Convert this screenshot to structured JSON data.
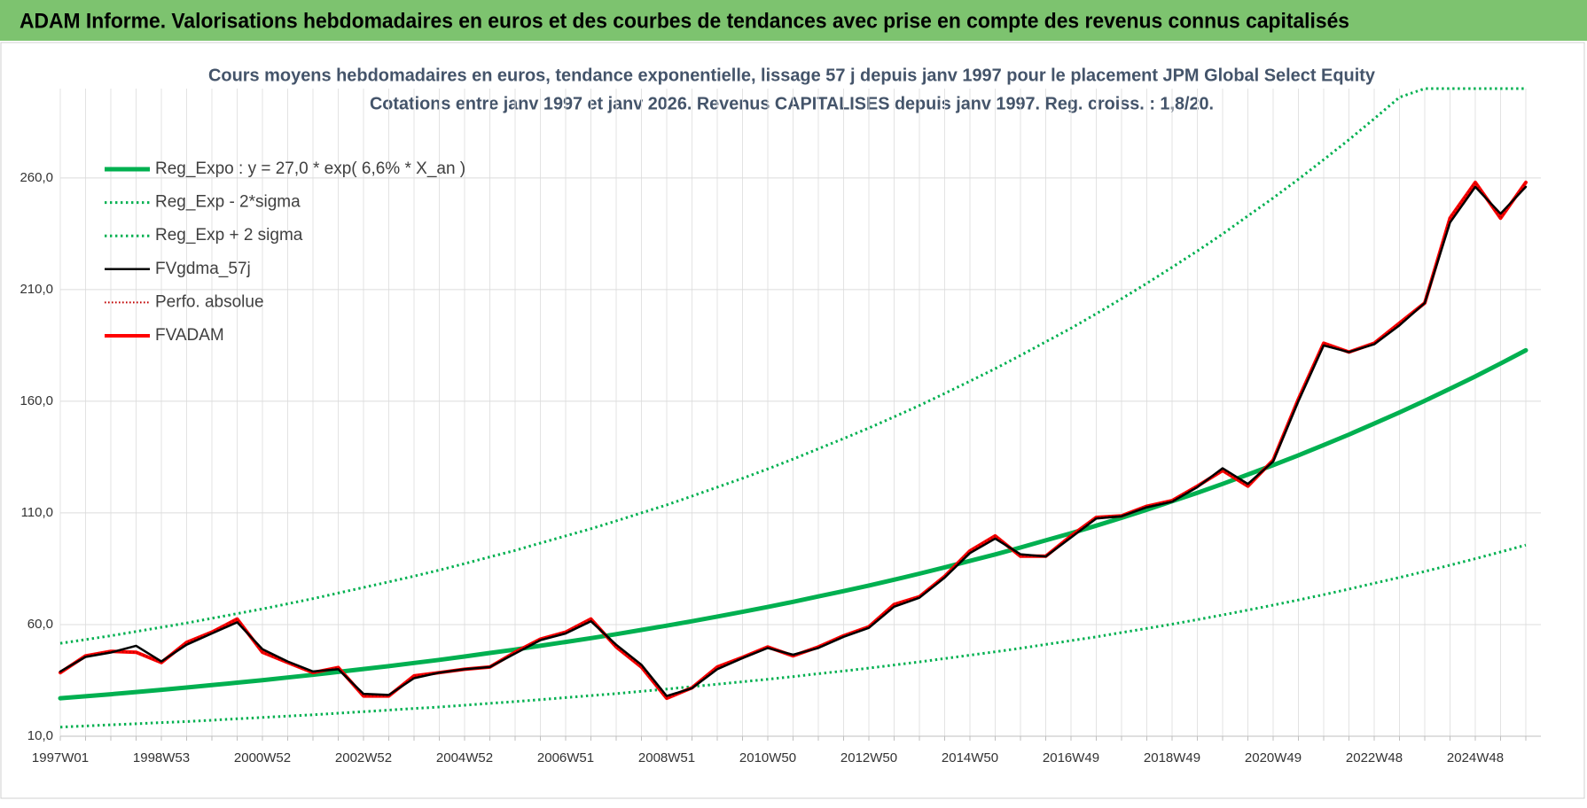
{
  "header": {
    "title": "ADAM Informe. Valorisations hebdomadaires en euros et des courbes de tendances avec prise en compte des revenus connus capitalisés"
  },
  "chart_data": {
    "type": "line",
    "title": "Cours moyens hebdomadaires en euros, tendance exponentielle, lissage 57 j depuis janv 1997  pour le  placement JPM Global Select Equity",
    "subtitle": "Cotations entre janv 1997 et janv 2026. Revenus CAPITALISES depuis janv 1997. Reg. croiss. : 1,8/20.",
    "categories": [
      "1997W01",
      null,
      null,
      null,
      "1998W53",
      null,
      null,
      null,
      "2000W52",
      null,
      null,
      null,
      "2002W52",
      null,
      null,
      null,
      "2004W52",
      null,
      null,
      null,
      "2006W51",
      null,
      null,
      null,
      "2008W51",
      null,
      null,
      null,
      "2010W50",
      null,
      null,
      null,
      "2012W50",
      null,
      null,
      null,
      "2014W50",
      null,
      null,
      null,
      "2016W49",
      null,
      null,
      null,
      "2018W49",
      null,
      null,
      null,
      "2020W49",
      null,
      null,
      null,
      "2022W48",
      null,
      null,
      null,
      "2024W48",
      null,
      null
    ],
    "ylim": [
      10,
      300
    ],
    "yticks": [
      {
        "value": 10,
        "label": "10,0"
      },
      {
        "value": 60,
        "label": "60,0"
      },
      {
        "value": 110,
        "label": "110,0"
      },
      {
        "value": 160,
        "label": "160,0"
      },
      {
        "value": 210,
        "label": "210,0"
      },
      {
        "value": 260,
        "label": "260,0"
      }
    ],
    "grid": true,
    "legend": "upper left",
    "series": [
      {
        "name": "Reg_Expo : y = 27,0 * exp( 6,6% *  X_an )",
        "color": "#00b050",
        "style": "solid",
        "width": 5,
        "values": [
          27.0,
          27.9,
          28.8,
          29.8,
          30.8,
          31.8,
          32.9,
          34.0,
          35.1,
          36.3,
          37.5,
          38.8,
          40.1,
          41.4,
          42.8,
          44.2,
          45.7,
          47.3,
          48.8,
          50.5,
          52.2,
          53.9,
          55.7,
          57.6,
          59.5,
          61.5,
          63.6,
          65.7,
          67.9,
          70.2,
          72.6,
          75.0,
          77.5,
          80.1,
          82.8,
          85.6,
          88.5,
          91.4,
          94.5,
          97.7,
          100.9,
          104.3,
          107.8,
          111.4,
          115.2,
          119.0,
          123.0,
          127.2,
          131.4,
          135.8,
          140.4,
          145.1,
          150.0,
          155.0,
          160.2,
          165.6,
          171.1,
          176.9,
          182.8
        ]
      },
      {
        "name": "Reg_Exp - 2*sigma",
        "color": "#00b050",
        "style": "dotted",
        "width": 3,
        "values": [
          14.1,
          14.6,
          15.1,
          15.6,
          16.1,
          16.6,
          17.2,
          17.8,
          18.4,
          19.0,
          19.6,
          20.3,
          21.0,
          21.7,
          22.4,
          23.1,
          23.9,
          24.7,
          25.5,
          26.4,
          27.3,
          28.2,
          29.1,
          30.1,
          31.1,
          32.2,
          33.3,
          34.4,
          35.5,
          36.7,
          38.0,
          39.2,
          40.5,
          41.9,
          43.3,
          44.8,
          46.3,
          47.8,
          49.4,
          51.1,
          52.8,
          54.5,
          56.4,
          58.3,
          60.2,
          62.2,
          64.3,
          66.5,
          68.7,
          71.0,
          73.4,
          75.9,
          78.5,
          81.1,
          83.8,
          86.6,
          89.5,
          92.5,
          95.6
        ]
      },
      {
        "name": "Reg_Exp + 2 sigma",
        "color": "#00b050",
        "style": "dotted",
        "width": 3,
        "values": [
          51.6,
          53.3,
          55.0,
          56.9,
          58.8,
          60.7,
          62.8,
          64.9,
          67.0,
          69.3,
          71.6,
          74.1,
          76.6,
          79.1,
          81.7,
          84.4,
          87.3,
          90.3,
          93.2,
          96.5,
          99.7,
          102.9,
          106.4,
          110.0,
          113.6,
          117.5,
          121.5,
          125.5,
          129.7,
          134.1,
          138.7,
          143.3,
          148.0,
          153.0,
          158.1,
          163.5,
          169.0,
          174.6,
          180.5,
          186.6,
          192.7,
          199.2,
          205.9,
          212.8,
          220.0,
          227.3,
          234.9,
          243.0,
          251.0,
          259.4,
          268.2,
          277.1,
          286.5,
          296.1,
          300,
          300,
          300,
          300,
          300
        ]
      },
      {
        "name": "FVgdma_57j",
        "color": "#000000",
        "style": "solid",
        "width": 2.5,
        "values": [
          39,
          45.5,
          47.5,
          50.5,
          43.5,
          51,
          56,
          61,
          49,
          43.5,
          39,
          40,
          29,
          28.5,
          36,
          38.5,
          40,
          41,
          47,
          53,
          56,
          61.5,
          51,
          42,
          28,
          31.5,
          40,
          45,
          49.5,
          46.5,
          49.5,
          54.5,
          58.5,
          68,
          72,
          81,
          92,
          98.5,
          91.5,
          90.5,
          99,
          107.5,
          108.5,
          112.5,
          115,
          121.5,
          130,
          123,
          133,
          160,
          185,
          182,
          185.5,
          194,
          204,
          240,
          256,
          244,
          256
        ]
      },
      {
        "name": "Perfo. absolue",
        "color": "#c00000",
        "style": "dotted",
        "width": 2,
        "values": [
          38.5,
          46,
          48,
          47.6,
          43,
          52,
          56.6,
          62.5,
          47.6,
          43,
          38.5,
          40.8,
          28,
          28,
          37,
          38.5,
          40,
          41,
          47.6,
          53.5,
          56.6,
          62.5,
          50,
          41,
          27,
          31.7,
          41,
          45.3,
          50,
          46,
          50,
          55,
          59,
          69,
          72.5,
          81.6,
          93,
          99.7,
          90.6,
          90.6,
          99.7,
          108,
          108.7,
          113,
          115.5,
          122,
          129,
          122,
          133.6,
          161,
          186,
          182,
          186,
          195,
          204,
          242,
          258,
          242,
          258
        ]
      },
      {
        "name": "FVADAM",
        "color": "#ff0000",
        "style": "solid",
        "width": 4,
        "values": [
          38.5,
          46,
          48,
          47.6,
          43,
          52,
          56.6,
          62.5,
          47.6,
          43,
          38.5,
          40.8,
          28,
          28,
          37,
          38.5,
          40,
          41,
          47.6,
          53.5,
          56.6,
          62.5,
          50,
          41,
          27,
          31.7,
          41,
          45.3,
          50,
          46,
          50,
          55,
          59,
          69,
          72.5,
          81.6,
          93,
          99.7,
          90.6,
          90.6,
          99.7,
          108,
          108.7,
          113,
          115.5,
          122,
          129,
          122,
          133.6,
          161,
          186,
          182,
          186,
          195,
          204,
          242,
          258,
          242,
          258
        ]
      }
    ]
  }
}
